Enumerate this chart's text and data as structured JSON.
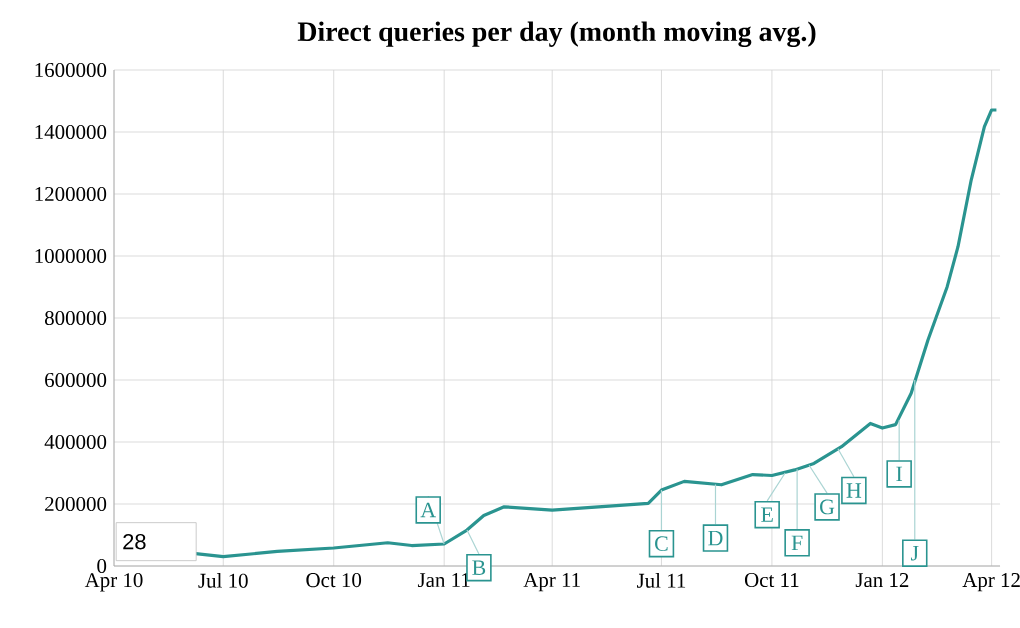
{
  "chart_data": {
    "type": "line",
    "title": "Direct queries per day (month moving avg.)",
    "x": [
      "2010-06-08",
      "2010-07-01",
      "2010-08-15",
      "2010-10-01",
      "2010-11-15",
      "2010-12-05",
      "2011-01-01",
      "2011-01-20",
      "2011-02-03",
      "2011-02-20",
      "2011-04-01",
      "2011-06-20",
      "2011-07-01",
      "2011-07-20",
      "2011-08-20",
      "2011-09-15",
      "2011-10-01",
      "2011-10-20",
      "2011-11-05",
      "2011-11-28",
      "2011-12-22",
      "2012-01-01",
      "2012-01-12",
      "2012-01-25",
      "2012-02-08",
      "2012-02-24",
      "2012-03-04",
      "2012-03-15",
      "2012-03-26",
      "2012-04-01",
      "2012-04-05"
    ],
    "series": [
      {
        "color": "#2a9490",
        "values": [
          40000,
          30000,
          47000,
          58000,
          75000,
          66000,
          71000,
          116000,
          163000,
          191000,
          180000,
          202000,
          245000,
          273000,
          262000,
          295000,
          292000,
          310000,
          331000,
          385000,
          460000,
          445000,
          456000,
          557000,
          729000,
          901000,
          1030000,
          1245000,
          1417000,
          1471000,
          1471000
        ]
      }
    ],
    "xlim": [
      "2010-04-01",
      "2012-04-08"
    ],
    "xticks": [
      {
        "value": "2010-04-01",
        "label": "Apr 10"
      },
      {
        "value": "2010-07-01",
        "label": "Jul 10"
      },
      {
        "value": "2010-10-01",
        "label": "Oct 10"
      },
      {
        "value": "2011-01-01",
        "label": "Jan 11"
      },
      {
        "value": "2011-04-01",
        "label": "Apr 11"
      },
      {
        "value": "2011-07-01",
        "label": "Jul 11"
      },
      {
        "value": "2011-10-01",
        "label": "Oct 11"
      },
      {
        "value": "2012-01-01",
        "label": "Jan 12"
      },
      {
        "value": "2012-04-01",
        "label": "Apr 12"
      }
    ],
    "ylim": [
      0,
      1600000
    ],
    "yticks": [
      0,
      200000,
      400000,
      600000,
      800000,
      1000000,
      1200000,
      1400000,
      1600000
    ],
    "grid": true,
    "marker": "none",
    "line_style": "solid",
    "annotations": [
      {
        "text": "A",
        "x": "2011-01-01",
        "y": 71000
      },
      {
        "text": "B",
        "x": "2011-01-20",
        "y": 116000
      },
      {
        "text": "C",
        "x": "2011-07-01",
        "y": 245000
      },
      {
        "text": "D",
        "x": "2011-08-15",
        "y": 263000
      },
      {
        "text": "E",
        "x": "2011-10-12",
        "y": 300000
      },
      {
        "text": "F",
        "x": "2011-10-22",
        "y": 312000
      },
      {
        "text": "G",
        "x": "2011-11-01",
        "y": 325000
      },
      {
        "text": "H",
        "x": "2011-11-25",
        "y": 378000
      },
      {
        "text": "I",
        "x": "2012-01-15",
        "y": 470000
      },
      {
        "text": "J",
        "x": "2012-01-28",
        "y": 600000
      },
      "28"
    ]
  }
}
